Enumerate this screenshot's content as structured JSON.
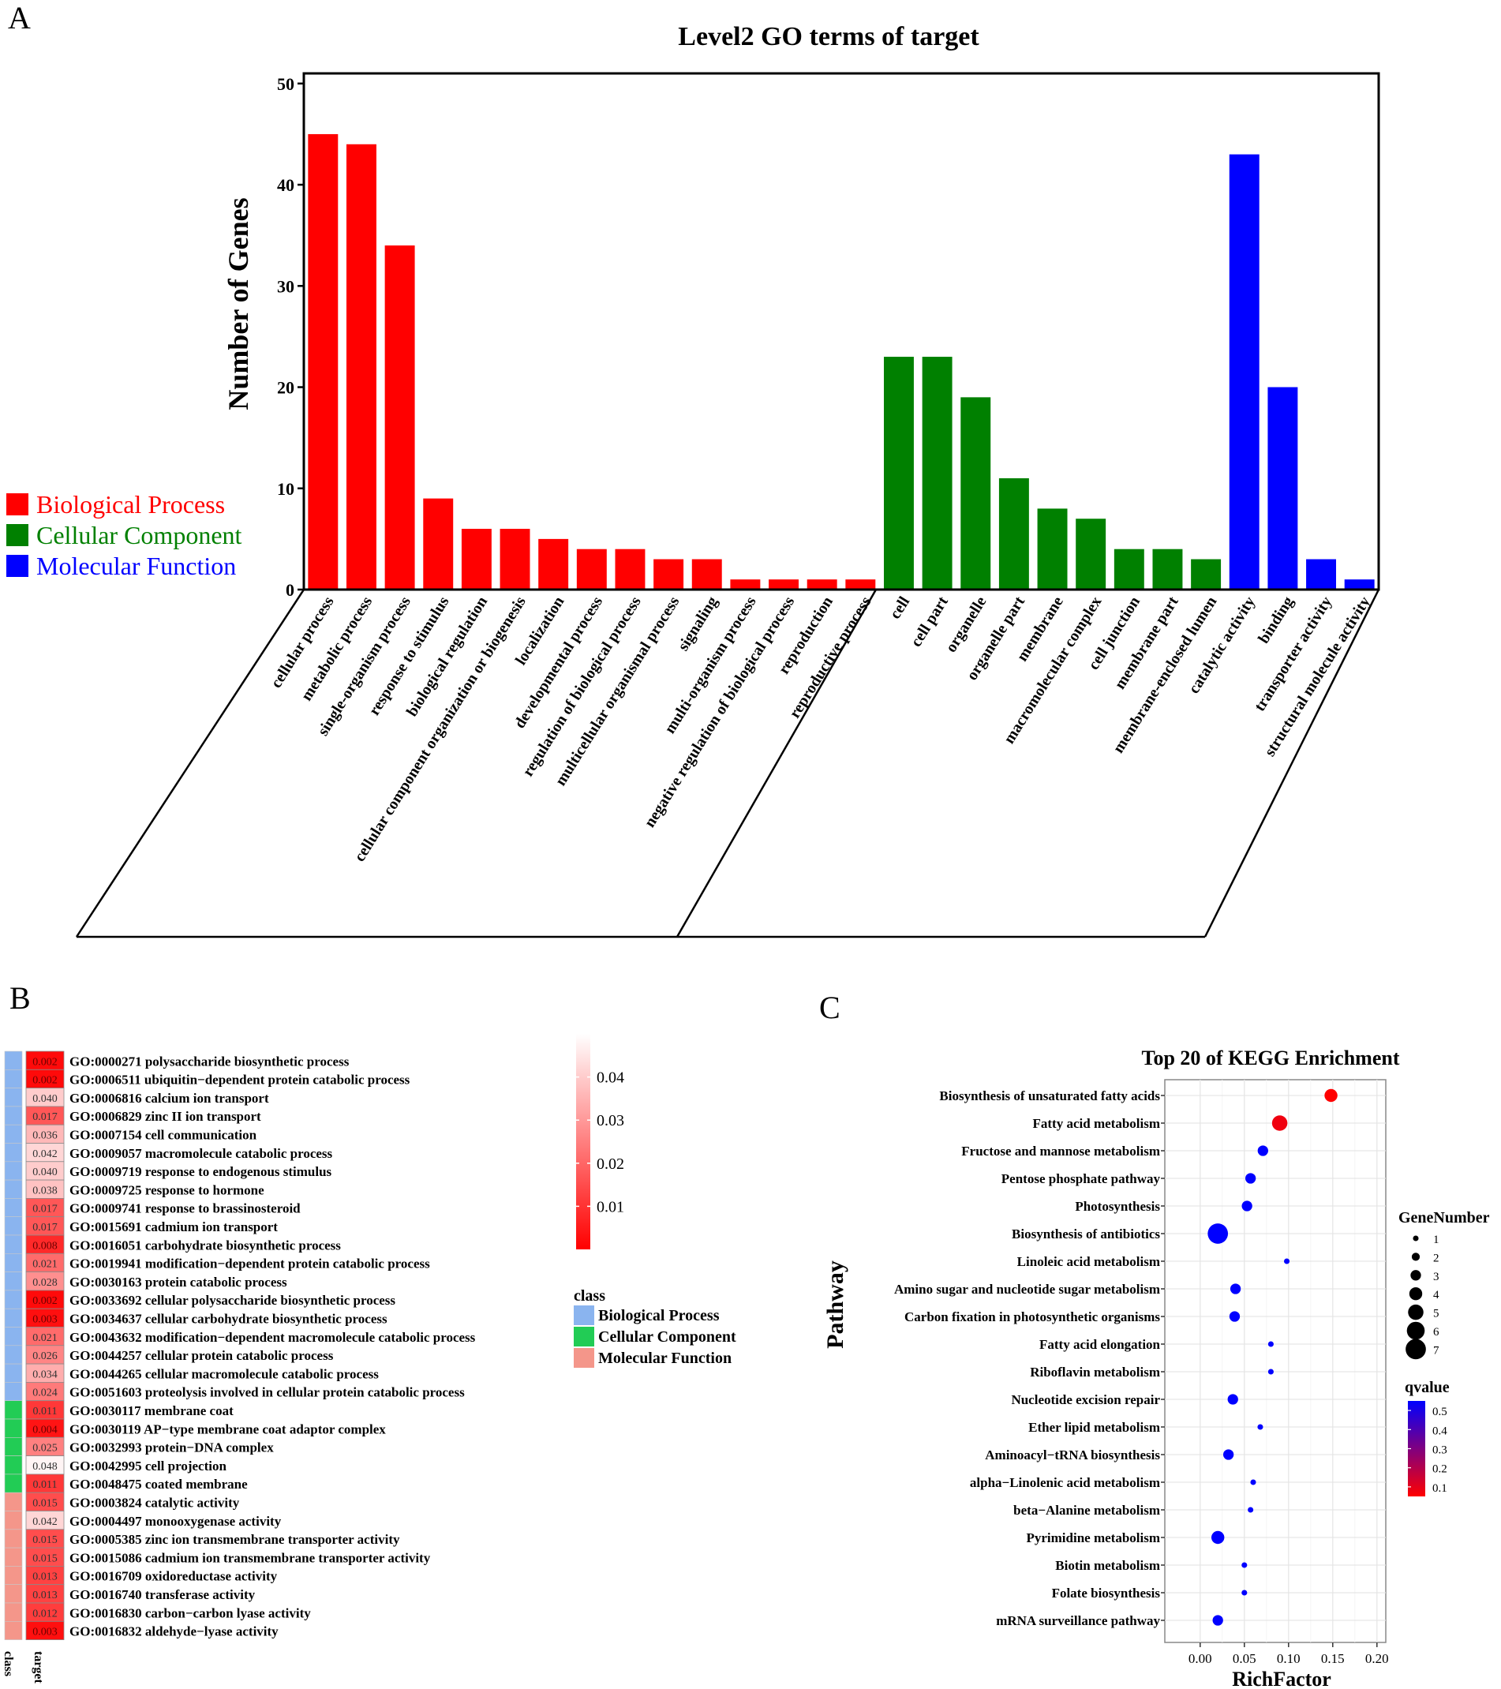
{
  "panel_labels": {
    "a": "A",
    "b": "B",
    "c": "C"
  },
  "colors": {
    "bp": "#ff0000",
    "cc": "#008000",
    "mf": "#0000ff",
    "heat_bp": "#8ab4ef",
    "heat_cc": "#22cc55",
    "heat_mf": "#f4968a"
  },
  "chart_data": [
    {
      "type": "bar",
      "title": "Level2 GO terms of target",
      "ylabel": "Number of Genes",
      "ylim": [
        0,
        51
      ],
      "yticks": [
        0,
        10,
        20,
        30,
        40,
        50
      ],
      "legend": [
        {
          "label": "Biological Process",
          "group": "bp"
        },
        {
          "label": "Cellular Component",
          "group": "cc"
        },
        {
          "label": "Molecular Function",
          "group": "mf"
        }
      ],
      "categories": [
        "cellular process",
        "metabolic process",
        "single-organism process",
        "response to stimulus",
        "biological regulation",
        "cellular component organization or biogenesis",
        "localization",
        "developmental process",
        "regulation of biological process",
        "multicellular organismal process",
        "signaling",
        "multi-organism process",
        "negative regulation of biological process",
        "reproduction",
        "reproductive process",
        "cell",
        "cell part",
        "organelle",
        "organelle part",
        "membrane",
        "macromolecular complex",
        "cell junction",
        "membrane part",
        "membrane-enclosed lumen",
        "catalytic activity",
        "binding",
        "transporter activity",
        "structural molecule activity"
      ],
      "groups": [
        "bp",
        "bp",
        "bp",
        "bp",
        "bp",
        "bp",
        "bp",
        "bp",
        "bp",
        "bp",
        "bp",
        "bp",
        "bp",
        "bp",
        "bp",
        "cc",
        "cc",
        "cc",
        "cc",
        "cc",
        "cc",
        "cc",
        "cc",
        "cc",
        "mf",
        "mf",
        "mf",
        "mf"
      ],
      "values": [
        45,
        44,
        34,
        9,
        6,
        6,
        5,
        4,
        4,
        3,
        3,
        1,
        1,
        1,
        1,
        23,
        23,
        19,
        11,
        8,
        7,
        4,
        4,
        3,
        43,
        20,
        3,
        1
      ]
    },
    {
      "type": "heatmap",
      "columns": [
        "class",
        "target"
      ],
      "color_scale": {
        "ticks": [
          0.04,
          0.03,
          0.02,
          0.01
        ],
        "range": [
          0,
          0.05
        ]
      },
      "class_legend": {
        "title": "class",
        "items": [
          {
            "label": "Biological Process",
            "key": "bp"
          },
          {
            "label": "Cellular Component",
            "key": "cc"
          },
          {
            "label": "Molecular Function",
            "key": "mf"
          }
        ]
      },
      "rows": [
        {
          "term": "GO:0000271 polysaccharide biosynthetic process",
          "class": "bp",
          "value": 0.002
        },
        {
          "term": "GO:0006511 ubiquitin−dependent protein catabolic process",
          "class": "bp",
          "value": 0.002
        },
        {
          "term": "GO:0006816 calcium ion transport",
          "class": "bp",
          "value": 0.04
        },
        {
          "term": "GO:0006829 zinc II ion transport",
          "class": "bp",
          "value": 0.017
        },
        {
          "term": "GO:0007154 cell communication",
          "class": "bp",
          "value": 0.036
        },
        {
          "term": "GO:0009057 macromolecule catabolic process",
          "class": "bp",
          "value": 0.042
        },
        {
          "term": "GO:0009719 response to endogenous stimulus",
          "class": "bp",
          "value": 0.04
        },
        {
          "term": "GO:0009725 response to hormone",
          "class": "bp",
          "value": 0.038
        },
        {
          "term": "GO:0009741 response to brassinosteroid",
          "class": "bp",
          "value": 0.017
        },
        {
          "term": "GO:0015691 cadmium ion transport",
          "class": "bp",
          "value": 0.017
        },
        {
          "term": "GO:0016051 carbohydrate biosynthetic process",
          "class": "bp",
          "value": 0.008
        },
        {
          "term": "GO:0019941 modification−dependent protein catabolic process",
          "class": "bp",
          "value": 0.021
        },
        {
          "term": "GO:0030163 protein catabolic process",
          "class": "bp",
          "value": 0.028
        },
        {
          "term": "GO:0033692 cellular polysaccharide biosynthetic process",
          "class": "bp",
          "value": 0.002
        },
        {
          "term": "GO:0034637 cellular carbohydrate biosynthetic process",
          "class": "bp",
          "value": 0.003
        },
        {
          "term": "GO:0043632 modification−dependent macromolecule catabolic process",
          "class": "bp",
          "value": 0.021
        },
        {
          "term": "GO:0044257 cellular protein catabolic process",
          "class": "bp",
          "value": 0.026
        },
        {
          "term": "GO:0044265 cellular macromolecule catabolic process",
          "class": "bp",
          "value": 0.034
        },
        {
          "term": "GO:0051603 proteolysis involved in cellular protein catabolic process",
          "class": "bp",
          "value": 0.024
        },
        {
          "term": "GO:0030117 membrane coat",
          "class": "cc",
          "value": 0.011
        },
        {
          "term": "GO:0030119 AP−type membrane coat adaptor complex",
          "class": "cc",
          "value": 0.004
        },
        {
          "term": "GO:0032993 protein−DNA complex",
          "class": "cc",
          "value": 0.025
        },
        {
          "term": "GO:0042995 cell projection",
          "class": "cc",
          "value": 0.048
        },
        {
          "term": "GO:0048475 coated membrane",
          "class": "cc",
          "value": 0.011
        },
        {
          "term": "GO:0003824 catalytic activity",
          "class": "mf",
          "value": 0.015
        },
        {
          "term": "GO:0004497 monooxygenase activity",
          "class": "mf",
          "value": 0.042
        },
        {
          "term": "GO:0005385 zinc ion transmembrane transporter activity",
          "class": "mf",
          "value": 0.015
        },
        {
          "term": "GO:0015086 cadmium ion transmembrane transporter activity",
          "class": "mf",
          "value": 0.015
        },
        {
          "term": "GO:0016709 oxidoreductase activity",
          "class": "mf",
          "value": 0.013
        },
        {
          "term": "GO:0016740 transferase activity",
          "class": "mf",
          "value": 0.013
        },
        {
          "term": "GO:0016830 carbon−carbon lyase activity",
          "class": "mf",
          "value": 0.012
        },
        {
          "term": "GO:0016832 aldehyde−lyase activity",
          "class": "mf",
          "value": 0.003
        }
      ]
    },
    {
      "type": "scatter",
      "title": "Top 20 of KEGG Enrichment",
      "xlabel": "RichFactor",
      "ylabel": "Pathway",
      "xlim": [
        -0.04,
        0.21
      ],
      "xticks": [
        "0.00",
        "0.05",
        "0.10",
        "0.15",
        "0.20"
      ],
      "size_legend": {
        "title": "GeneNumber",
        "values": [
          1,
          2,
          3,
          4,
          5,
          6,
          7
        ]
      },
      "color_legend": {
        "title": "qvalue",
        "ticks": [
          0.5,
          0.4,
          0.3,
          0.2,
          0.1
        ],
        "range": [
          0.05,
          0.55
        ]
      },
      "points": [
        {
          "pathway": "Biosynthesis of unsaturated fatty acids",
          "rich_factor": 0.148,
          "genes": 4,
          "qvalue": 0.05
        },
        {
          "pathway": "Fatty acid metabolism",
          "rich_factor": 0.09,
          "genes": 5,
          "qvalue": 0.08
        },
        {
          "pathway": "Fructose and mannose metabolism",
          "rich_factor": 0.071,
          "genes": 3,
          "qvalue": 0.55
        },
        {
          "pathway": "Pentose phosphate pathway",
          "rich_factor": 0.057,
          "genes": 3,
          "qvalue": 0.55
        },
        {
          "pathway": "Photosynthesis",
          "rich_factor": 0.053,
          "genes": 3,
          "qvalue": 0.55
        },
        {
          "pathway": "Biosynthesis of antibiotics",
          "rich_factor": 0.02,
          "genes": 7,
          "qvalue": 0.55
        },
        {
          "pathway": "Linoleic acid metabolism",
          "rich_factor": 0.098,
          "genes": 1,
          "qvalue": 0.55
        },
        {
          "pathway": "Amino sugar and nucleotide sugar metabolism",
          "rich_factor": 0.04,
          "genes": 3,
          "qvalue": 0.55
        },
        {
          "pathway": "Carbon fixation in photosynthetic organisms",
          "rich_factor": 0.039,
          "genes": 3,
          "qvalue": 0.55
        },
        {
          "pathway": "Fatty acid elongation",
          "rich_factor": 0.08,
          "genes": 1,
          "qvalue": 0.55
        },
        {
          "pathway": "Riboflavin metabolism",
          "rich_factor": 0.08,
          "genes": 1,
          "qvalue": 0.55
        },
        {
          "pathway": "Nucleotide excision repair",
          "rich_factor": 0.037,
          "genes": 3,
          "qvalue": 0.55
        },
        {
          "pathway": "Ether lipid metabolism",
          "rich_factor": 0.068,
          "genes": 1,
          "qvalue": 0.55
        },
        {
          "pathway": "Aminoacyl−tRNA biosynthesis",
          "rich_factor": 0.032,
          "genes": 3,
          "qvalue": 0.55
        },
        {
          "pathway": "alpha−Linolenic acid metabolism",
          "rich_factor": 0.06,
          "genes": 1,
          "qvalue": 0.55
        },
        {
          "pathway": "beta−Alanine metabolism",
          "rich_factor": 0.057,
          "genes": 1,
          "qvalue": 0.55
        },
        {
          "pathway": "Pyrimidine metabolism",
          "rich_factor": 0.02,
          "genes": 4,
          "qvalue": 0.55
        },
        {
          "pathway": "Biotin metabolism",
          "rich_factor": 0.05,
          "genes": 1,
          "qvalue": 0.55
        },
        {
          "pathway": "Folate biosynthesis",
          "rich_factor": 0.05,
          "genes": 1,
          "qvalue": 0.55
        },
        {
          "pathway": "mRNA surveillance pathway",
          "rich_factor": 0.02,
          "genes": 3,
          "qvalue": 0.55
        }
      ]
    }
  ]
}
